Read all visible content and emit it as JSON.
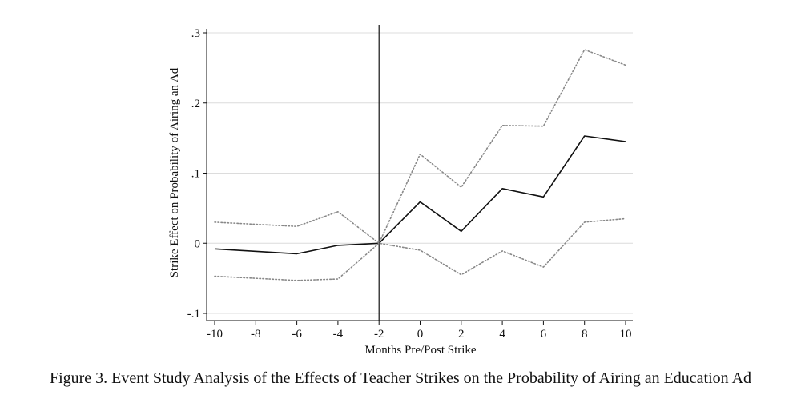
{
  "caption": "Figure 3. Event Study Analysis of the Effects of Teacher Strikes on the Probability of Airing an Education Ad",
  "chart_data": {
    "type": "line",
    "title": "",
    "xlabel": "Months Pre/Post Strike",
    "ylabel": "Strike Effect on Probability of Airing an Ad",
    "xlim": [
      -10,
      10
    ],
    "ylim": [
      -0.1,
      0.3
    ],
    "x_ticks": [
      -10,
      -8,
      -6,
      -4,
      -2,
      0,
      2,
      4,
      6,
      8,
      10
    ],
    "x_tick_labels": [
      "-10",
      "-8",
      "-6",
      "-4",
      "-2",
      "0",
      "2",
      "4",
      "6",
      "8",
      "10"
    ],
    "y_ticks": [
      -0.1,
      0,
      0.1,
      0.2,
      0.3
    ],
    "y_tick_labels": [
      "-.1",
      "0",
      ".1",
      ".2",
      ".3"
    ],
    "grid": true,
    "reference_line_x": -2,
    "x": [
      -10,
      -6,
      -4,
      -2,
      0,
      2,
      4,
      6,
      8,
      10
    ],
    "series": [
      {
        "values": [
          -0.008,
          -0.015,
          -0.003,
          0.0,
          0.059,
          0.017,
          0.078,
          0.066,
          0.153,
          0.145
        ],
        "style": "solid",
        "color": "#111111"
      },
      {
        "values": [
          0.03,
          0.024,
          0.045,
          0.0,
          0.127,
          0.08,
          0.168,
          0.167,
          0.276,
          0.254
        ],
        "style": "dotted",
        "color": "#888888"
      },
      {
        "values": [
          -0.047,
          -0.053,
          -0.051,
          0.0,
          -0.01,
          -0.045,
          -0.011,
          -0.034,
          0.03,
          0.035
        ],
        "style": "dotted",
        "color": "#888888"
      }
    ]
  }
}
